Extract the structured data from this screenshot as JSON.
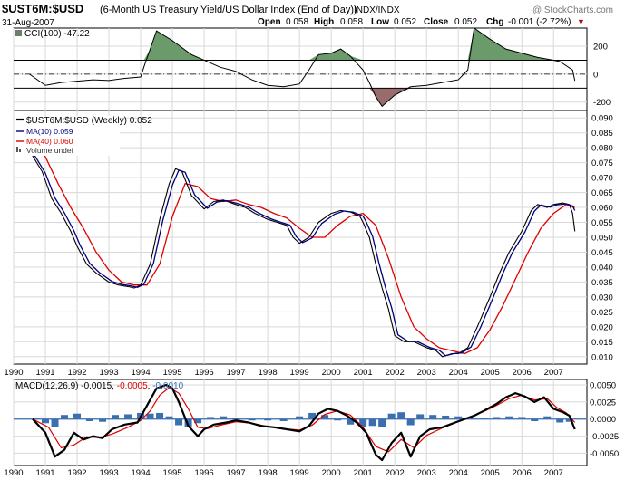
{
  "header": {
    "symbol": "$UST6M:$USD",
    "description": "(6-Month US Treasury Yield/US Dollar Index (End of Day))",
    "exchange": "INDX/INDX",
    "date": "31-Aug-2007",
    "watermark": "@ StockCharts.com",
    "quote": {
      "open_label": "Open",
      "open": "0.058",
      "high_label": "High",
      "high": "0.058",
      "low_label": "Low",
      "low": "0.052",
      "close_label": "Close",
      "close": "0.052",
      "chg_label": "Chg",
      "chg": "-0.001 (-2.72%)",
      "chg_arrow": "▼"
    }
  },
  "colors": {
    "price": "#000000",
    "ma10": "#000080",
    "ma40": "#dd0000",
    "cci_positive_fill": "#6b9a6b",
    "cci_negative_fill": "#9a6b6b",
    "macd_line": "#000000",
    "macd_signal": "#dd0000",
    "macd_hist": "#3a6fb0",
    "grid": "#d8d8d8"
  },
  "chart_data": [
    {
      "type": "area",
      "name": "cci_panel",
      "legend": "CCI(100) -47.22",
      "value": -47.22,
      "ylim": [
        -260,
        330
      ],
      "ticks": [
        "200",
        "0",
        "-200"
      ],
      "tick_values": [
        200,
        0,
        -200
      ],
      "reference_lines": [
        100,
        -100
      ],
      "x": [
        1990.5,
        1991.0,
        1991.5,
        1992.0,
        1992.5,
        1993.0,
        1993.5,
        1994.0,
        1994.1,
        1994.3,
        1994.5,
        1995.0,
        1995.3,
        1995.6,
        1996.0,
        1996.5,
        1997.0,
        1997.5,
        1998.0,
        1998.5,
        1999.0,
        1999.3,
        1999.6,
        2000.0,
        2000.3,
        2000.6,
        2001.0,
        2001.2,
        2001.4,
        2001.6,
        2002.0,
        2002.5,
        2003.0,
        2003.5,
        2004.0,
        2004.3,
        2004.5,
        2005.0,
        2005.5,
        2006.0,
        2006.5,
        2007.0,
        2007.2,
        2007.4,
        2007.6,
        2007.67
      ],
      "values": [
        0,
        -80,
        -60,
        -50,
        -40,
        -45,
        -30,
        -20,
        50,
        180,
        310,
        240,
        190,
        140,
        100,
        50,
        20,
        -40,
        -80,
        -90,
        -70,
        30,
        140,
        150,
        180,
        130,
        30,
        -60,
        -160,
        -230,
        -150,
        -90,
        -80,
        -60,
        -40,
        30,
        330,
        250,
        180,
        150,
        120,
        100,
        90,
        60,
        30,
        -47.22
      ]
    },
    {
      "type": "line",
      "name": "price_panel",
      "title": "$UST6M:$USD (Weekly) 0.052",
      "ylim": [
        0.0075,
        0.0925
      ],
      "y_ticks": [
        "0.090",
        "0.085",
        "0.080",
        "0.075",
        "0.070",
        "0.065",
        "0.060",
        "0.055",
        "0.050",
        "0.045",
        "0.040",
        "0.035",
        "0.030",
        "0.025",
        "0.020",
        "0.015",
        "0.010"
      ],
      "y_tick_values": [
        0.09,
        0.085,
        0.08,
        0.075,
        0.07,
        0.065,
        0.06,
        0.055,
        0.05,
        0.045,
        0.04,
        0.035,
        0.03,
        0.025,
        0.02,
        0.015,
        0.01
      ],
      "x_ticks": [
        "1990",
        "1991",
        "1992",
        "1993",
        "1994",
        "1995",
        "1996",
        "1997",
        "1998",
        "1999",
        "2000",
        "2001",
        "2002",
        "2003",
        "2004",
        "2005",
        "2006",
        "2007"
      ],
      "x_tick_values": [
        1990,
        1991,
        1992,
        1993,
        1994,
        1995,
        1996,
        1997,
        1998,
        1999,
        2000,
        2001,
        2002,
        2003,
        2004,
        2005,
        2006,
        2007
      ],
      "xlim": [
        1990,
        2008.05
      ],
      "legend": [
        "$UST6M:$USD (Weekly) 0.052",
        "MA(10) 0.059",
        "MA(40) 0.060",
        "Volume undef"
      ],
      "series": [
        {
          "name": "$UST6M:$USD",
          "x": [
            1990.5,
            1990.9,
            1991.2,
            1991.5,
            1991.8,
            1992.0,
            1992.3,
            1992.6,
            1993.0,
            1993.3,
            1993.6,
            1993.8,
            1994.0,
            1994.3,
            1994.6,
            1994.9,
            1995.1,
            1995.3,
            1995.6,
            1996.0,
            1996.3,
            1996.6,
            1997.0,
            1997.3,
            1997.6,
            1998.0,
            1998.3,
            1998.6,
            1998.8,
            1999.0,
            1999.3,
            1999.6,
            2000.0,
            2000.3,
            2000.6,
            2000.9,
            2001.0,
            2001.2,
            2001.4,
            2001.6,
            2001.8,
            2002.0,
            2002.3,
            2002.6,
            2003.0,
            2003.3,
            2003.5,
            2003.8,
            2004.0,
            2004.3,
            2004.6,
            2005.0,
            2005.3,
            2005.6,
            2006.0,
            2006.3,
            2006.5,
            2006.8,
            2007.0,
            2007.3,
            2007.5,
            2007.6,
            2007.67
          ],
          "values": [
            0.079,
            0.072,
            0.063,
            0.058,
            0.052,
            0.047,
            0.041,
            0.038,
            0.035,
            0.034,
            0.0335,
            0.033,
            0.034,
            0.041,
            0.056,
            0.068,
            0.073,
            0.072,
            0.064,
            0.0595,
            0.062,
            0.0625,
            0.061,
            0.06,
            0.058,
            0.056,
            0.055,
            0.054,
            0.05,
            0.048,
            0.05,
            0.055,
            0.058,
            0.059,
            0.0585,
            0.057,
            0.055,
            0.05,
            0.041,
            0.033,
            0.026,
            0.017,
            0.015,
            0.015,
            0.013,
            0.012,
            0.01,
            0.011,
            0.011,
            0.013,
            0.02,
            0.03,
            0.038,
            0.045,
            0.052,
            0.059,
            0.061,
            0.06,
            0.061,
            0.0615,
            0.061,
            0.058,
            0.052
          ]
        },
        {
          "name": "MA(10)",
          "x": [
            1990.6,
            1991.0,
            1991.3,
            1991.6,
            1991.9,
            1992.1,
            1992.4,
            1992.7,
            1993.1,
            1993.4,
            1993.7,
            1993.9,
            1994.1,
            1994.4,
            1994.7,
            1995.0,
            1995.2,
            1995.4,
            1995.7,
            1996.1,
            1996.4,
            1996.7,
            1997.1,
            1997.4,
            1997.7,
            1998.1,
            1998.4,
            1998.7,
            1998.9,
            1999.1,
            1999.4,
            1999.7,
            2000.1,
            2000.4,
            2000.7,
            2001.0,
            2001.1,
            2001.3,
            2001.5,
            2001.7,
            2001.9,
            2002.1,
            2002.4,
            2002.7,
            2003.1,
            2003.4,
            2003.6,
            2003.9,
            2004.1,
            2004.4,
            2004.7,
            2005.1,
            2005.4,
            2005.7,
            2006.1,
            2006.4,
            2006.6,
            2006.9,
            2007.1,
            2007.4,
            2007.6,
            2007.67
          ],
          "values": [
            0.0785,
            0.0715,
            0.0632,
            0.0582,
            0.0522,
            0.0472,
            0.0412,
            0.0382,
            0.0352,
            0.0342,
            0.0337,
            0.0332,
            0.0342,
            0.0412,
            0.0558,
            0.0675,
            0.0725,
            0.0718,
            0.0642,
            0.0597,
            0.0618,
            0.0623,
            0.0612,
            0.0601,
            0.0582,
            0.0562,
            0.0551,
            0.0541,
            0.0502,
            0.0482,
            0.0498,
            0.0546,
            0.0577,
            0.0588,
            0.0584,
            0.0571,
            0.0552,
            0.0503,
            0.0414,
            0.0334,
            0.0264,
            0.0173,
            0.0152,
            0.0151,
            0.0131,
            0.0121,
            0.0103,
            0.0111,
            0.0112,
            0.0132,
            0.0198,
            0.0298,
            0.0378,
            0.0448,
            0.0518,
            0.0588,
            0.0608,
            0.0601,
            0.0609,
            0.0612,
            0.0605,
            0.059
          ]
        },
        {
          "name": "MA(40)",
          "x": [
            1990.6,
            1991.0,
            1991.4,
            1991.8,
            1992.2,
            1992.6,
            1993.0,
            1993.4,
            1993.8,
            1994.2,
            1994.6,
            1995.0,
            1995.4,
            1995.8,
            1996.2,
            1996.6,
            1997.0,
            1997.4,
            1997.8,
            1998.2,
            1998.6,
            1999.0,
            1999.4,
            1999.8,
            2000.2,
            2000.6,
            2001.0,
            2001.4,
            2001.8,
            2002.2,
            2002.6,
            2003.0,
            2003.4,
            2003.8,
            2004.2,
            2004.6,
            2005.0,
            2005.4,
            2005.8,
            2006.2,
            2006.6,
            2007.0,
            2007.4,
            2007.67
          ],
          "values": [
            0.082,
            0.077,
            0.068,
            0.06,
            0.053,
            0.045,
            0.039,
            0.035,
            0.034,
            0.034,
            0.041,
            0.057,
            0.068,
            0.067,
            0.063,
            0.062,
            0.0625,
            0.061,
            0.06,
            0.058,
            0.0565,
            0.053,
            0.05,
            0.05,
            0.054,
            0.057,
            0.058,
            0.054,
            0.043,
            0.03,
            0.02,
            0.016,
            0.013,
            0.012,
            0.011,
            0.013,
            0.019,
            0.027,
            0.036,
            0.045,
            0.053,
            0.058,
            0.061,
            0.06
          ]
        }
      ]
    },
    {
      "type": "line",
      "name": "macd_panel",
      "legend": "MACD(12,26,9) -0.0015, -0.0005, -0.0010",
      "legend_parts": [
        "MACD(12,26,9) -0.0015",
        ", ",
        "-0.0005",
        ", ",
        "-0.0010"
      ],
      "ylim": [
        -0.0068,
        0.0058
      ],
      "ticks": [
        "0.0050",
        "0.0025",
        "0.0000",
        "-0.0025",
        "-0.0050"
      ],
      "tick_values": [
        0.005,
        0.0025,
        0.0,
        -0.0025,
        -0.005
      ],
      "x_ticks": [
        "1990",
        "1991",
        "1992",
        "1993",
        "1994",
        "1995",
        "1996",
        "1997",
        "1998",
        "1999",
        "2000",
        "2001",
        "2002",
        "2003",
        "2004",
        "2005",
        "2006",
        "2007"
      ],
      "x_tick_values": [
        1990,
        1991,
        1992,
        1993,
        1994,
        1995,
        1996,
        1997,
        1998,
        1999,
        2000,
        2001,
        2002,
        2003,
        2004,
        2005,
        2006,
        2007
      ],
      "series": [
        {
          "name": "MACD",
          "x": [
            1990.6,
            1991.0,
            1991.3,
            1991.6,
            1991.9,
            1992.2,
            1992.5,
            1992.8,
            1993.1,
            1993.5,
            1993.9,
            1994.2,
            1994.5,
            1994.8,
            1995.0,
            1995.2,
            1995.5,
            1995.8,
            1996.0,
            1996.3,
            1996.7,
            1997.0,
            1997.4,
            1997.8,
            1998.2,
            1998.6,
            1999.0,
            1999.3,
            1999.6,
            1999.9,
            2000.2,
            2000.5,
            2000.8,
            2001.1,
            2001.4,
            2001.6,
            2001.9,
            2002.2,
            2002.5,
            2002.8,
            2003.1,
            2003.5,
            2003.9,
            2004.2,
            2004.5,
            2004.8,
            2005.2,
            2005.5,
            2005.8,
            2006.1,
            2006.4,
            2006.7,
            2007.0,
            2007.3,
            2007.5,
            2007.67
          ],
          "values": [
            0.0,
            -0.002,
            -0.0055,
            -0.0045,
            -0.002,
            -0.003,
            -0.0025,
            -0.0028,
            -0.0015,
            -0.0008,
            -0.0005,
            0.002,
            0.0045,
            0.005,
            0.0045,
            0.0025,
            -0.001,
            -0.0025,
            -0.0015,
            -0.0008,
            -0.0005,
            -0.0002,
            -0.0005,
            -0.001,
            -0.0012,
            -0.0015,
            -0.0018,
            -0.001,
            0.0008,
            0.0015,
            0.0012,
            0.0005,
            -0.0005,
            -0.002,
            -0.0052,
            -0.006,
            -0.0035,
            -0.002,
            -0.0055,
            -0.0025,
            -0.0015,
            -0.0012,
            -0.0005,
            0.0,
            0.0005,
            0.0012,
            0.0022,
            0.0032,
            0.0038,
            0.0033,
            0.0025,
            0.0032,
            0.0015,
            0.001,
            0.0005,
            -0.0015
          ]
        },
        {
          "name": "Signal",
          "x": [
            1990.6,
            1991.1,
            1991.5,
            1991.9,
            1992.3,
            1992.7,
            1993.1,
            1993.6,
            1994.0,
            1994.3,
            1994.6,
            1994.9,
            1995.2,
            1995.5,
            1995.8,
            1996.1,
            1996.5,
            1997.0,
            1997.5,
            1998.0,
            1998.5,
            1999.0,
            1999.4,
            1999.8,
            2000.2,
            2000.6,
            2001.0,
            2001.4,
            2001.8,
            2002.2,
            2002.6,
            2003.0,
            2003.5,
            2004.0,
            2004.4,
            2004.8,
            2005.2,
            2005.6,
            2006.0,
            2006.4,
            2006.8,
            2007.1,
            2007.4,
            2007.67
          ],
          "values": [
            0.0,
            -0.0012,
            -0.0042,
            -0.0038,
            -0.0026,
            -0.0027,
            -0.0022,
            -0.0012,
            -0.0002,
            0.0012,
            0.0035,
            0.0046,
            0.0038,
            0.0015,
            -0.0012,
            -0.0014,
            -0.0009,
            -0.0004,
            -0.0006,
            -0.0011,
            -0.0014,
            -0.0016,
            -0.0009,
            0.0007,
            0.0012,
            0.0006,
            -0.0012,
            -0.004,
            -0.0048,
            -0.003,
            -0.0042,
            -0.0024,
            -0.0013,
            -0.0004,
            0.0004,
            0.0011,
            0.002,
            0.003,
            0.0035,
            0.0028,
            0.003,
            0.0017,
            0.0009,
            -0.0005
          ]
        },
        {
          "name": "Histogram",
          "type": "bar",
          "x": [
            1990.7,
            1991.0,
            1991.3,
            1991.6,
            1992.0,
            1992.4,
            1992.8,
            1993.2,
            1993.6,
            1994.0,
            1994.3,
            1994.6,
            1994.9,
            1995.2,
            1995.5,
            1995.8,
            1996.2,
            1996.6,
            1997.0,
            1997.5,
            1998.0,
            1998.5,
            1999.0,
            1999.4,
            1999.8,
            2000.2,
            2000.6,
            2001.0,
            2001.3,
            2001.6,
            2001.9,
            2002.2,
            2002.5,
            2002.8,
            2003.2,
            2003.6,
            2004.0,
            2004.4,
            2004.8,
            2005.2,
            2005.6,
            2006.0,
            2006.4,
            2006.8,
            2007.2,
            2007.5
          ],
          "values": [
            0.0002,
            -0.0006,
            -0.0012,
            0.0006,
            0.0008,
            -0.0003,
            -0.0004,
            0.0006,
            0.0007,
            0.0009,
            0.0008,
            0.0009,
            0.0004,
            -0.0009,
            -0.0011,
            -0.0006,
            0.0003,
            0.0004,
            0.0002,
            -0.0002,
            -0.0002,
            -0.0003,
            0.0004,
            0.0009,
            0.0006,
            -0.0002,
            -0.0008,
            -0.0011,
            -0.001,
            -0.0012,
            0.0008,
            0.001,
            -0.0009,
            0.0007,
            0.0006,
            0.0005,
            0.0004,
            0.0002,
            0.0002,
            0.0003,
            0.0004,
            0.0003,
            -0.0003,
            0.0004,
            -0.0005,
            -0.0004
          ]
        }
      ]
    }
  ]
}
